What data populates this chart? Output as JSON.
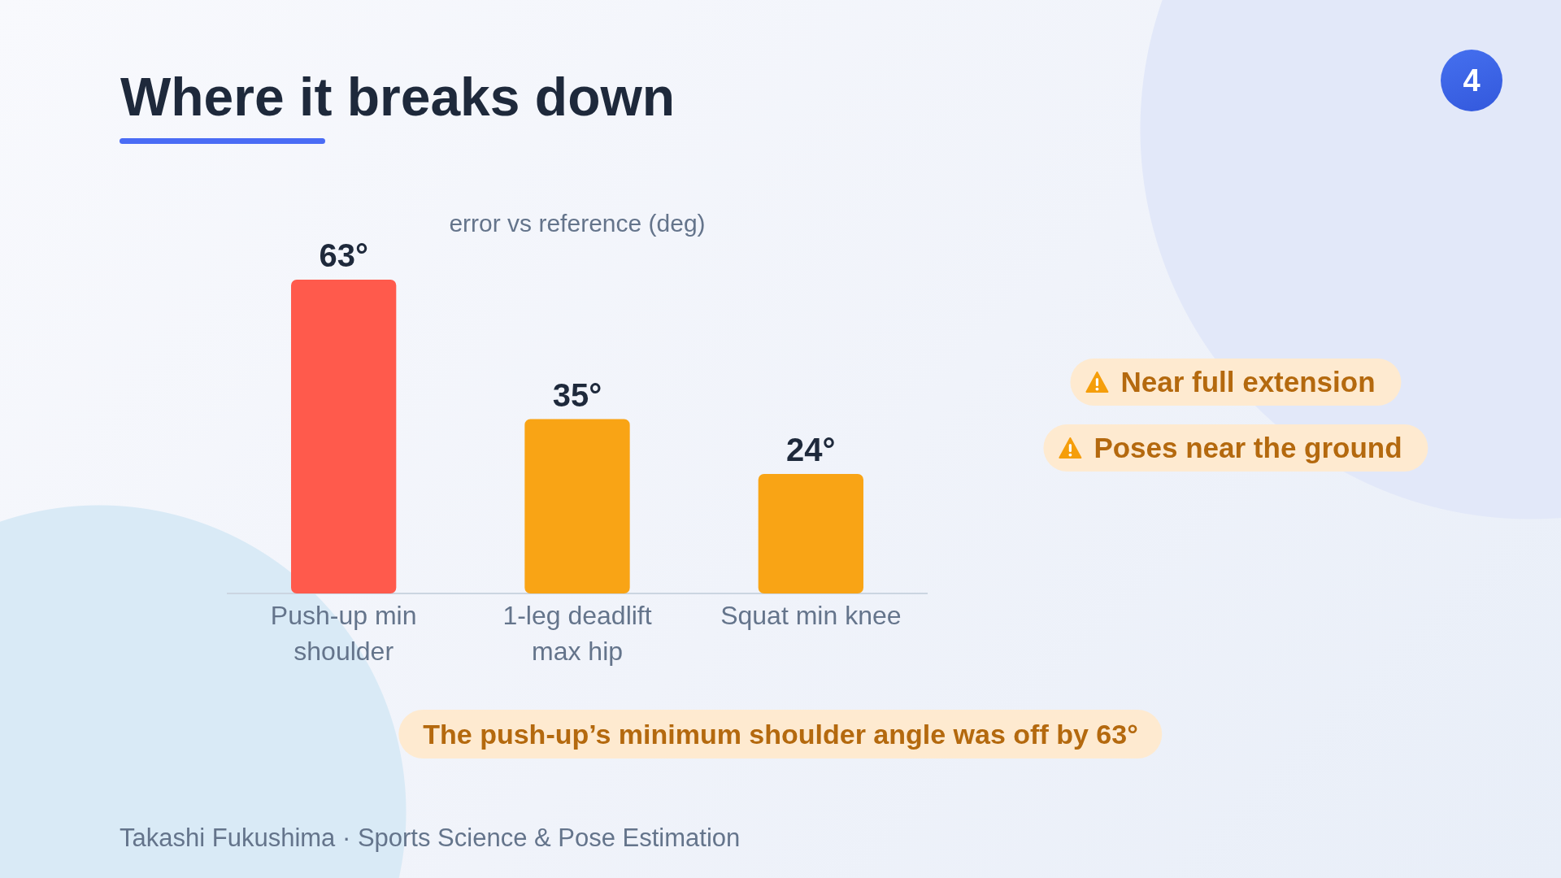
{
  "chart_data": {
    "type": "bar",
    "title": "Where it breaks down",
    "subtitle": "error vs reference (deg)",
    "categories": [
      "Push-up min shoulder",
      "1-leg deadlift max hip",
      "Squat min knee"
    ],
    "values": [
      63,
      35,
      24
    ],
    "value_labels": [
      "63°",
      "35°",
      "24°"
    ],
    "colors": [
      "#ff5a4c",
      "#f9a415",
      "#f9a415"
    ],
    "tick_labels": "x",
    "annotations": [
      "Near full extension",
      "Poses near the ground",
      "The push-up’s minimum shoulder angle was off by 63°",
      "Takashi Fukushima · Sports Science & Pose Estimation",
      "4"
    ]
  }
}
